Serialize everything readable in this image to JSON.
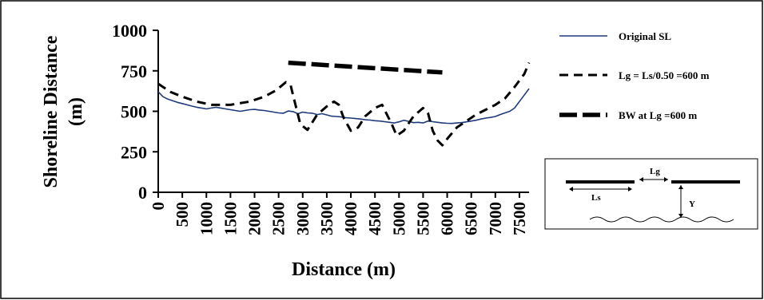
{
  "chart_data": {
    "type": "line",
    "title": "",
    "xlabel": "Distance (m)",
    "ylabel_line1": "Shoreline Distance",
    "ylabel_line2": "(m)",
    "xlim": [
      0,
      7700
    ],
    "ylim": [
      0,
      1000
    ],
    "x_ticks": [
      "0",
      "500",
      "1000",
      "1500",
      "2000",
      "2500",
      "3000",
      "3500",
      "4000",
      "4500",
      "5000",
      "5500",
      "6000",
      "6500",
      "7000",
      "7500"
    ],
    "y_ticks": [
      "0",
      "250",
      "500",
      "750",
      "1000"
    ],
    "grid": false,
    "legend_position": "right",
    "series": [
      {
        "name": "Original SL",
        "style": "solid-thin",
        "color": "#1f3a7a",
        "x": [
          0,
          100,
          200,
          300,
          400,
          500,
          600,
          700,
          800,
          900,
          1000,
          1100,
          1200,
          1300,
          1400,
          1500,
          1600,
          1700,
          1800,
          1900,
          2000,
          2100,
          2200,
          2300,
          2400,
          2500,
          2600,
          2700,
          2800,
          2900,
          3000,
          3100,
          3200,
          3300,
          3400,
          3500,
          3600,
          3700,
          3800,
          3900,
          4000,
          4100,
          4200,
          4300,
          4400,
          4500,
          4600,
          4700,
          4800,
          4900,
          5000,
          5100,
          5200,
          5300,
          5400,
          5500,
          5600,
          5700,
          5800,
          5900,
          6000,
          6100,
          6200,
          6300,
          6400,
          6500,
          6600,
          6700,
          6800,
          6900,
          7000,
          7100,
          7200,
          7300,
          7400,
          7500,
          7600,
          7700
        ],
        "y": [
          620,
          590,
          575,
          565,
          555,
          548,
          540,
          532,
          525,
          520,
          515,
          520,
          525,
          520,
          515,
          510,
          505,
          500,
          505,
          510,
          512,
          508,
          505,
          500,
          495,
          490,
          488,
          502,
          498,
          485,
          495,
          490,
          488,
          480,
          485,
          478,
          470,
          468,
          465,
          460,
          458,
          455,
          452,
          448,
          446,
          442,
          440,
          436,
          432,
          428,
          435,
          445,
          438,
          430,
          432,
          428,
          440,
          436,
          432,
          428,
          426,
          425,
          428,
          430,
          435,
          440,
          445,
          452,
          458,
          462,
          468,
          480,
          490,
          500,
          520,
          560,
          600,
          640
        ]
      },
      {
        "name": "Lg = Ls/0.50 =600 m",
        "style": "dashed",
        "color": "#000000",
        "x": [
          0,
          250,
          500,
          800,
          1100,
          1500,
          1900,
          2200,
          2450,
          2650,
          2750,
          2800,
          2950,
          3100,
          3300,
          3500,
          3650,
          3750,
          3850,
          4000,
          4150,
          4300,
          4500,
          4650,
          4750,
          4850,
          4950,
          5100,
          5300,
          5500,
          5600,
          5700,
          5800,
          5900,
          6000,
          6200,
          6400,
          6600,
          6800,
          7000,
          7200,
          7400,
          7600,
          7700
        ],
        "y": [
          670,
          620,
          590,
          560,
          540,
          540,
          560,
          590,
          630,
          680,
          660,
          600,
          420,
          385,
          480,
          530,
          560,
          540,
          460,
          380,
          400,
          470,
          520,
          540,
          480,
          420,
          350,
          380,
          470,
          520,
          490,
          380,
          320,
          290,
          330,
          400,
          440,
          480,
          510,
          540,
          580,
          650,
          730,
          800
        ]
      },
      {
        "name": "BW at Lg =600 m",
        "style": "thick",
        "color": "#000000",
        "x": [
          2700,
          5900
        ],
        "y": [
          800,
          740
        ]
      }
    ],
    "inset": {
      "labels": [
        "Lg",
        "Ls",
        "Y"
      ]
    }
  }
}
